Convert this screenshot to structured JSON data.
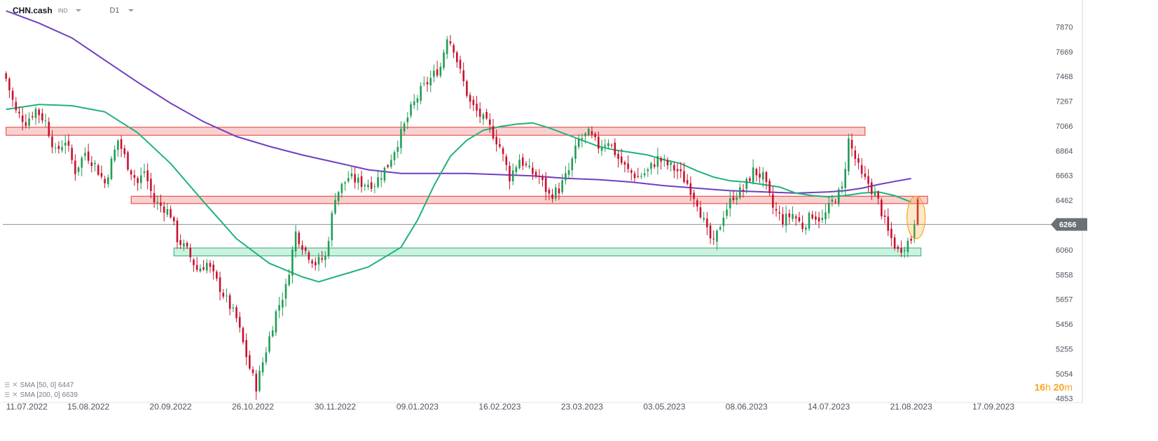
{
  "header": {
    "symbol": "CHN.cash",
    "symbol_tag": "IND",
    "timeframe": "D1"
  },
  "legend": [
    {
      "label": "SMA [50, 0] 6447"
    },
    {
      "label": "SMA [200, 0] 6639"
    }
  ],
  "countdown": {
    "hours": "16",
    "hours_unit": "h",
    "minutes": "20",
    "minutes_unit": "m"
  },
  "colors": {
    "up": "#1f9d55",
    "down": "#c8102e",
    "sma50": "#20b27a",
    "sma200": "#6f3fbf",
    "resistance_fill": "#f8c8c8",
    "resistance_stroke": "#e53935",
    "support_fill": "#c3efdb",
    "support_stroke": "#2fae74",
    "price_tag": "#6b7078",
    "highlight": "#f5a623"
  },
  "chart_data": {
    "type": "candlestick",
    "title": "CHN.cash",
    "timeframe": "D1",
    "x_tick_labels": [
      "11.07.2022",
      "15.08.2022",
      "20.09.2022",
      "26.10.2022",
      "30.11.2022",
      "09.01.2023",
      "16.02.2023",
      "23.03.2023",
      "03.05.2023",
      "08.06.2023",
      "14.07.2023",
      "21.08.2023",
      "17.09.2023"
    ],
    "x_tick_positions": [
      0,
      25,
      50,
      75,
      100,
      125,
      150,
      175,
      200,
      225,
      250,
      275,
      300
    ],
    "y_ticks": [
      7870,
      7669,
      7468,
      7267,
      7066,
      6864,
      6663,
      6462,
      6266,
      6060,
      5858,
      5657,
      5456,
      5255,
      5054,
      4853
    ],
    "ylim": [
      4820,
      8020
    ],
    "xlim": [
      -1,
      320
    ],
    "current_price": 6266,
    "grid": false,
    "legend_position": "bottom-left",
    "candle_width_units": 0.55,
    "anchors": [
      [
        0,
        7450
      ],
      [
        3,
        7180
      ],
      [
        6,
        7100
      ],
      [
        9,
        7200
      ],
      [
        12,
        7100
      ],
      [
        15,
        6850
      ],
      [
        18,
        6950
      ],
      [
        21,
        6700
      ],
      [
        24,
        6850
      ],
      [
        27,
        6750
      ],
      [
        30,
        6600
      ],
      [
        34,
        6950
      ],
      [
        37,
        6750
      ],
      [
        40,
        6600
      ],
      [
        42,
        6700
      ],
      [
        45,
        6450
      ],
      [
        48,
        6400
      ],
      [
        50,
        6350
      ],
      [
        52,
        6150
      ],
      [
        55,
        6050
      ],
      [
        58,
        5900
      ],
      [
        61,
        5950
      ],
      [
        64,
        5800
      ],
      [
        67,
        5650
      ],
      [
        70,
        5500
      ],
      [
        72,
        5300
      ],
      [
        74,
        5100
      ],
      [
        76,
        4950
      ],
      [
        78,
        5150
      ],
      [
        80,
        5350
      ],
      [
        82,
        5550
      ],
      [
        85,
        5750
      ],
      [
        88,
        6200
      ],
      [
        91,
        6050
      ],
      [
        94,
        5950
      ],
      [
        97,
        6000
      ],
      [
        100,
        6500
      ],
      [
        104,
        6650
      ],
      [
        108,
        6600
      ],
      [
        112,
        6600
      ],
      [
        116,
        6750
      ],
      [
        120,
        7000
      ],
      [
        123,
        7200
      ],
      [
        126,
        7350
      ],
      [
        129,
        7450
      ],
      [
        132,
        7550
      ],
      [
        134,
        7800
      ],
      [
        136,
        7700
      ],
      [
        138,
        7500
      ],
      [
        141,
        7250
      ],
      [
        144,
        7150
      ],
      [
        147,
        7050
      ],
      [
        150,
        6900
      ],
      [
        153,
        6650
      ],
      [
        156,
        6800
      ],
      [
        159,
        6700
      ],
      [
        162,
        6650
      ],
      [
        165,
        6500
      ],
      [
        168,
        6550
      ],
      [
        171,
        6700
      ],
      [
        174,
        6950
      ],
      [
        177,
        7000
      ],
      [
        180,
        6900
      ],
      [
        183,
        6950
      ],
      [
        186,
        6800
      ],
      [
        189,
        6700
      ],
      [
        192,
        6650
      ],
      [
        195,
        6700
      ],
      [
        198,
        6800
      ],
      [
        201,
        6750
      ],
      [
        204,
        6700
      ],
      [
        207,
        6600
      ],
      [
        210,
        6450
      ],
      [
        213,
        6200
      ],
      [
        215,
        6100
      ],
      [
        218,
        6350
      ],
      [
        221,
        6500
      ],
      [
        224,
        6550
      ],
      [
        227,
        6700
      ],
      [
        230,
        6650
      ],
      [
        233,
        6400
      ],
      [
        236,
        6300
      ],
      [
        239,
        6350
      ],
      [
        242,
        6250
      ],
      [
        245,
        6350
      ],
      [
        248,
        6300
      ],
      [
        251,
        6450
      ],
      [
        254,
        6550
      ],
      [
        256,
        6950
      ],
      [
        258,
        6800
      ],
      [
        260,
        6650
      ],
      [
        262,
        6600
      ],
      [
        265,
        6450
      ],
      [
        268,
        6200
      ],
      [
        271,
        6050
      ],
      [
        273,
        6100
      ],
      [
        275,
        6150
      ],
      [
        276,
        6300
      ],
      [
        277,
        6266
      ]
    ],
    "sma50": [
      [
        0,
        7200
      ],
      [
        10,
        7240
      ],
      [
        20,
        7230
      ],
      [
        30,
        7180
      ],
      [
        40,
        7010
      ],
      [
        50,
        6760
      ],
      [
        60,
        6450
      ],
      [
        70,
        6150
      ],
      [
        80,
        5950
      ],
      [
        90,
        5840
      ],
      [
        95,
        5800
      ],
      [
        100,
        5840
      ],
      [
        110,
        5920
      ],
      [
        120,
        6080
      ],
      [
        125,
        6300
      ],
      [
        130,
        6580
      ],
      [
        135,
        6820
      ],
      [
        140,
        6950
      ],
      [
        145,
        7030
      ],
      [
        150,
        7060
      ],
      [
        155,
        7080
      ],
      [
        160,
        7090
      ],
      [
        165,
        7050
      ],
      [
        170,
        7000
      ],
      [
        175,
        6950
      ],
      [
        180,
        6900
      ],
      [
        185,
        6870
      ],
      [
        190,
        6850
      ],
      [
        195,
        6830
      ],
      [
        200,
        6790
      ],
      [
        205,
        6760
      ],
      [
        210,
        6700
      ],
      [
        215,
        6650
      ],
      [
        220,
        6620
      ],
      [
        225,
        6610
      ],
      [
        230,
        6590
      ],
      [
        235,
        6570
      ],
      [
        240,
        6520
      ],
      [
        245,
        6500
      ],
      [
        250,
        6490
      ],
      [
        255,
        6500
      ],
      [
        260,
        6520
      ],
      [
        265,
        6530
      ],
      [
        270,
        6500
      ],
      [
        275,
        6447
      ]
    ],
    "sma200": [
      [
        0,
        8000
      ],
      [
        10,
        7900
      ],
      [
        20,
        7780
      ],
      [
        30,
        7600
      ],
      [
        40,
        7420
      ],
      [
        50,
        7250
      ],
      [
        60,
        7100
      ],
      [
        70,
        6980
      ],
      [
        80,
        6900
      ],
      [
        90,
        6830
      ],
      [
        100,
        6770
      ],
      [
        110,
        6710
      ],
      [
        120,
        6680
      ],
      [
        130,
        6680
      ],
      [
        140,
        6680
      ],
      [
        150,
        6670
      ],
      [
        160,
        6660
      ],
      [
        170,
        6640
      ],
      [
        180,
        6630
      ],
      [
        190,
        6610
      ],
      [
        200,
        6580
      ],
      [
        210,
        6560
      ],
      [
        220,
        6540
      ],
      [
        230,
        6530
      ],
      [
        240,
        6520
      ],
      [
        250,
        6530
      ],
      [
        255,
        6540
      ],
      [
        260,
        6560
      ],
      [
        265,
        6590
      ],
      [
        270,
        6615
      ],
      [
        275,
        6639
      ]
    ],
    "zones": [
      {
        "kind": "resistance",
        "y_low": 6990,
        "y_high": 7055,
        "x_from": 0,
        "x_to": 261
      },
      {
        "kind": "resistance",
        "y_low": 6435,
        "y_high": 6495,
        "x_from": 38,
        "x_to": 280
      },
      {
        "kind": "support",
        "y_low": 6010,
        "y_high": 6075,
        "x_from": 51,
        "x_to": 278
      }
    ],
    "highlight": {
      "x": 276.5,
      "y_low": 6150,
      "y_high": 6495
    }
  }
}
